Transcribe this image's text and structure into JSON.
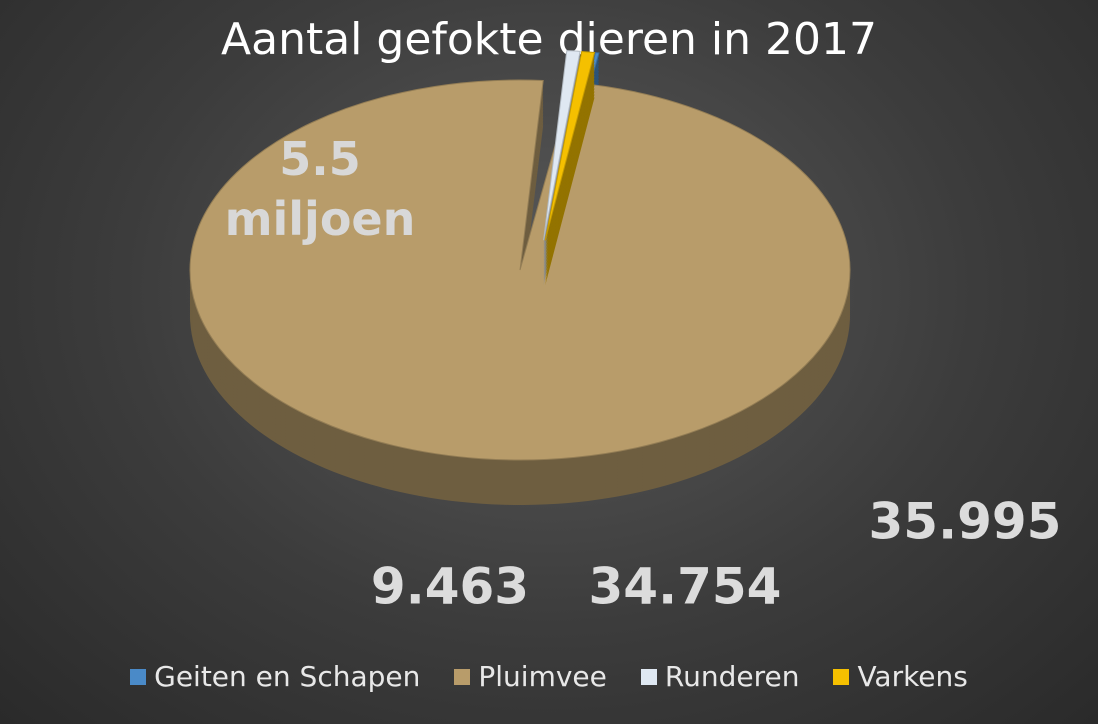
{
  "chart_data": {
    "type": "pie",
    "title": "Aantal gefokte dieren in 2017",
    "categories": [
      "Geiten en Schapen",
      "Pluimvee",
      "Runderen",
      "Varkens"
    ],
    "values": [
      9463,
      5500000,
      35995,
      34754
    ],
    "value_labels": [
      "9.463",
      "5.5 miljoen",
      "35.995",
      "34.754"
    ],
    "colors": [
      "#4a8ac8",
      "#b89c6a",
      "#dfe8f2",
      "#f5c000"
    ]
  }
}
